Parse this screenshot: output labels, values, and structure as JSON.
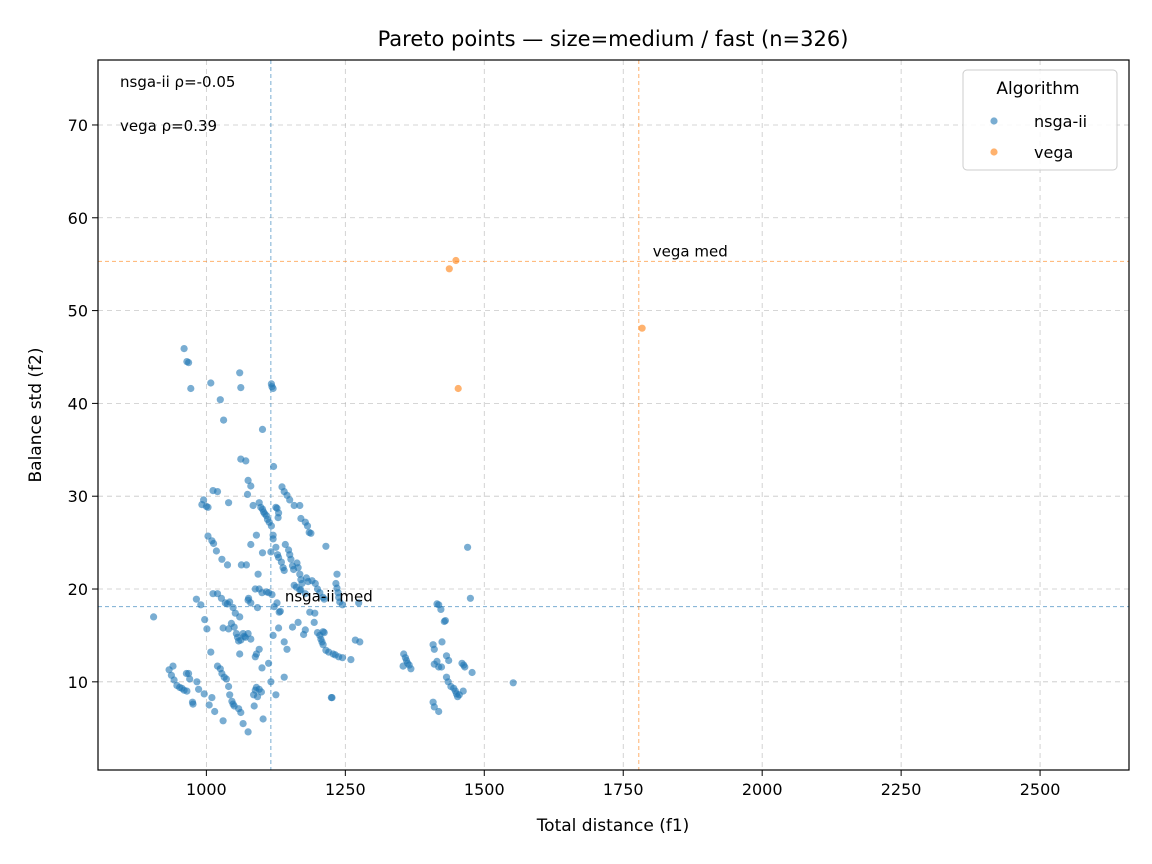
{
  "chart_data": {
    "type": "scatter",
    "title": "Pareto points — size=medium / fast (n=326)",
    "xlabel": "Total distance (f1)",
    "ylabel": "Balance std (f2)",
    "xlim": [
      805,
      2660
    ],
    "ylim": [
      0.5,
      77
    ],
    "xticks": [
      1000,
      1250,
      1500,
      1750,
      2000,
      2250,
      2500
    ],
    "yticks": [
      10,
      20,
      30,
      40,
      50,
      60,
      70
    ],
    "grid": true,
    "legend": {
      "title": "Algorithm",
      "position": "top-right"
    },
    "annotations": {
      "stat_lines": [
        "nsga-ii ρ=-0.05",
        "vega ρ=0.39"
      ],
      "median_labels": {
        "nsga-ii": "nsga-ii med",
        "vega": "vega med"
      }
    },
    "series": [
      {
        "name": "nsga-ii",
        "color": "#1f77b4",
        "median": {
          "x": 1116,
          "y": 18.1
        },
        "points": [
          [
            960,
            45.9
          ],
          [
            965,
            44.5
          ],
          [
            968,
            44.4
          ],
          [
            972,
            41.6
          ],
          [
            1008,
            42.2
          ],
          [
            1025,
            40.4
          ],
          [
            1031,
            38.2
          ],
          [
            1060,
            43.3
          ],
          [
            1062,
            41.7
          ],
          [
            1117,
            42.1
          ],
          [
            1118,
            41.8
          ],
          [
            1120,
            41.6
          ],
          [
            1101,
            37.2
          ],
          [
            1062,
            34.0
          ],
          [
            1071,
            33.8
          ],
          [
            1121,
            33.2
          ],
          [
            995,
            29.6
          ],
          [
            992,
            29.1
          ],
          [
            1000,
            28.9
          ],
          [
            1003,
            28.8
          ],
          [
            1012,
            30.6
          ],
          [
            1020,
            30.5
          ],
          [
            1040,
            29.3
          ],
          [
            1074,
            30.2
          ],
          [
            1075,
            31.7
          ],
          [
            1080,
            31.1
          ],
          [
            1084,
            29.0
          ],
          [
            1095,
            29.3
          ],
          [
            1098,
            28.8
          ],
          [
            1101,
            28.6
          ],
          [
            1103,
            28.3
          ],
          [
            1105,
            28.1
          ],
          [
            1108,
            27.9
          ],
          [
            1110,
            27.5
          ],
          [
            1113,
            27.2
          ],
          [
            1117,
            26.8
          ],
          [
            1120,
            25.8
          ],
          [
            1120,
            25.4
          ],
          [
            1125,
            28.8
          ],
          [
            1127,
            28.7
          ],
          [
            1130,
            28.2
          ],
          [
            1129,
            27.7
          ],
          [
            1136,
            31.0
          ],
          [
            1140,
            30.5
          ],
          [
            1145,
            30.1
          ],
          [
            1150,
            29.6
          ],
          [
            1158,
            29.0
          ],
          [
            1168,
            29.0
          ],
          [
            1170,
            27.6
          ],
          [
            1178,
            27.2
          ],
          [
            1182,
            26.8
          ],
          [
            1185,
            26.1
          ],
          [
            1188,
            26.0
          ],
          [
            1003,
            25.7
          ],
          [
            1010,
            25.2
          ],
          [
            1013,
            24.9
          ],
          [
            1018,
            24.1
          ],
          [
            1028,
            23.2
          ],
          [
            1038,
            22.6
          ],
          [
            1063,
            22.6
          ],
          [
            1072,
            22.6
          ],
          [
            1080,
            24.8
          ],
          [
            1093,
            21.6
          ],
          [
            1101,
            23.9
          ],
          [
            1116,
            24.0
          ],
          [
            1125,
            24.5
          ],
          [
            1128,
            23.7
          ],
          [
            1130,
            23.4
          ],
          [
            1135,
            22.9
          ],
          [
            1138,
            22.3
          ],
          [
            1140,
            22.0
          ],
          [
            1142,
            24.8
          ],
          [
            1148,
            24.2
          ],
          [
            1150,
            23.7
          ],
          [
            1152,
            23.2
          ],
          [
            1155,
            22.5
          ],
          [
            1157,
            22.1
          ],
          [
            1163,
            22.8
          ],
          [
            1165,
            22.3
          ],
          [
            1168,
            21.6
          ],
          [
            1170,
            21.0
          ],
          [
            1172,
            20.6
          ],
          [
            1180,
            21.2
          ],
          [
            1183,
            20.8
          ],
          [
            1190,
            20.9
          ],
          [
            1196,
            20.6
          ],
          [
            1200,
            20.0
          ],
          [
            1204,
            19.6
          ],
          [
            1210,
            19.1
          ],
          [
            1215,
            24.6
          ],
          [
            1235,
            21.6
          ],
          [
            1233,
            20.6
          ],
          [
            1235,
            20.1
          ],
          [
            1237,
            19.6
          ],
          [
            1238,
            19.1
          ],
          [
            1240,
            18.6
          ],
          [
            1245,
            18.3
          ],
          [
            1212,
            18.9
          ],
          [
            1170,
            19.9
          ],
          [
            1178,
            19.5
          ],
          [
            1158,
            20.4
          ],
          [
            1162,
            20.2
          ],
          [
            1168,
            19.9
          ],
          [
            1186,
            17.5
          ],
          [
            1195,
            17.4
          ],
          [
            1194,
            16.4
          ],
          [
            1165,
            16.4
          ],
          [
            1155,
            15.9
          ],
          [
            1175,
            15.1
          ],
          [
            1178,
            15.6
          ],
          [
            1200,
            15.3
          ],
          [
            1204,
            15.0
          ],
          [
            1206,
            14.6
          ],
          [
            1208,
            14.3
          ],
          [
            1210,
            14.0
          ],
          [
            1212,
            15.3
          ],
          [
            1210,
            15.4
          ],
          [
            1215,
            13.4
          ],
          [
            1220,
            13.2
          ],
          [
            1228,
            13.0
          ],
          [
            1232,
            12.9
          ],
          [
            1238,
            12.7
          ],
          [
            1245,
            12.6
          ],
          [
            1260,
            12.4
          ],
          [
            1268,
            14.5
          ],
          [
            1276,
            14.3
          ],
          [
            1274,
            18.5
          ],
          [
            1225,
            8.3
          ],
          [
            1226,
            8.3
          ],
          [
            1090,
            25.8
          ],
          [
            1088,
            20.0
          ],
          [
            1095,
            20.0
          ],
          [
            1100,
            19.6
          ],
          [
            1108,
            19.7
          ],
          [
            1112,
            19.6
          ],
          [
            1118,
            19.4
          ],
          [
            1122,
            18.1
          ],
          [
            1127,
            18.5
          ],
          [
            1131,
            17.5
          ],
          [
            1133,
            17.6
          ],
          [
            1120,
            15.0
          ],
          [
            1130,
            15.8
          ],
          [
            1140,
            14.3
          ],
          [
            1145,
            13.5
          ],
          [
            982,
            18.9
          ],
          [
            990,
            18.3
          ],
          [
            1012,
            19.5
          ],
          [
            1020,
            19.5
          ],
          [
            1027,
            19.0
          ],
          [
            1034,
            18.5
          ],
          [
            1038,
            18.4
          ],
          [
            1042,
            18.6
          ],
          [
            1048,
            18.0
          ],
          [
            1052,
            17.4
          ],
          [
            1060,
            17.0
          ],
          [
            1075,
            18.8
          ],
          [
            1076,
            19.0
          ],
          [
            1080,
            18.5
          ],
          [
            1092,
            18.0
          ],
          [
            997,
            16.7
          ],
          [
            1001,
            15.7
          ],
          [
            1008,
            13.2
          ],
          [
            1030,
            15.8
          ],
          [
            1040,
            15.7
          ],
          [
            1045,
            16.3
          ],
          [
            1050,
            15.9
          ],
          [
            1054,
            15.2
          ],
          [
            1056,
            14.8
          ],
          [
            1058,
            14.4
          ],
          [
            1060,
            13.0
          ],
          [
            1062,
            14.5
          ],
          [
            1066,
            15.2
          ],
          [
            1068,
            14.9
          ],
          [
            1070,
            14.8
          ],
          [
            1075,
            15.2
          ],
          [
            1080,
            14.6
          ],
          [
            1088,
            12.7
          ],
          [
            1090,
            13.0
          ],
          [
            1095,
            13.5
          ],
          [
            1100,
            11.5
          ],
          [
            1112,
            12.0
          ],
          [
            1116,
            10.0
          ],
          [
            1125,
            8.6
          ],
          [
            1140,
            10.5
          ],
          [
            940,
            11.7
          ],
          [
            933,
            11.3
          ],
          [
            937,
            10.7
          ],
          [
            942,
            10.2
          ],
          [
            947,
            9.6
          ],
          [
            952,
            9.4
          ],
          [
            956,
            9.3
          ],
          [
            960,
            9.1
          ],
          [
            965,
            9.0
          ],
          [
            964,
            10.9
          ],
          [
            968,
            10.9
          ],
          [
            970,
            10.3
          ],
          [
            975,
            7.8
          ],
          [
            976,
            7.6
          ],
          [
            983,
            10.0
          ],
          [
            986,
            9.2
          ],
          [
            996,
            8.7
          ],
          [
            1005,
            7.5
          ],
          [
            1010,
            8.3
          ],
          [
            1015,
            6.8
          ],
          [
            1020,
            11.7
          ],
          [
            1025,
            11.4
          ],
          [
            1028,
            10.9
          ],
          [
            1032,
            10.5
          ],
          [
            1036,
            10.3
          ],
          [
            1040,
            9.5
          ],
          [
            1042,
            8.6
          ],
          [
            1046,
            7.9
          ],
          [
            1048,
            7.6
          ],
          [
            1050,
            7.4
          ],
          [
            1058,
            7.1
          ],
          [
            1062,
            6.7
          ],
          [
            1066,
            5.5
          ],
          [
            1075,
            4.6
          ],
          [
            1030,
            5.8
          ],
          [
            1085,
            8.6
          ],
          [
            1088,
            9.1
          ],
          [
            1090,
            9.4
          ],
          [
            1095,
            9.2
          ],
          [
            1099,
            8.9
          ],
          [
            1102,
            6.0
          ],
          [
            1086,
            7.4
          ],
          [
            1092,
            8.4
          ],
          [
            905,
            17.0
          ],
          [
            1415,
            18.4
          ],
          [
            1418,
            18.3
          ],
          [
            1422,
            17.8
          ],
          [
            1428,
            16.5
          ],
          [
            1430,
            16.6
          ],
          [
            1424,
            14.3
          ],
          [
            1432,
            12.8
          ],
          [
            1436,
            12.3
          ],
          [
            1408,
            14.0
          ],
          [
            1410,
            13.5
          ],
          [
            1415,
            12.2
          ],
          [
            1418,
            11.6
          ],
          [
            1423,
            11.6
          ],
          [
            1410,
            11.9
          ],
          [
            1355,
            13.0
          ],
          [
            1358,
            12.6
          ],
          [
            1360,
            12.3
          ],
          [
            1362,
            12.0
          ],
          [
            1365,
            11.8
          ],
          [
            1368,
            11.4
          ],
          [
            1354,
            11.7
          ],
          [
            1460,
            12.0
          ],
          [
            1465,
            11.6
          ],
          [
            1463,
            11.8
          ],
          [
            1478,
            11.0
          ],
          [
            1470,
            24.5
          ],
          [
            1475,
            19.0
          ],
          [
            1432,
            10.5
          ],
          [
            1435,
            10.0
          ],
          [
            1440,
            9.5
          ],
          [
            1445,
            9.3
          ],
          [
            1448,
            9.0
          ],
          [
            1450,
            8.7
          ],
          [
            1452,
            8.4
          ],
          [
            1455,
            8.6
          ],
          [
            1462,
            9.0
          ],
          [
            1408,
            7.8
          ],
          [
            1410,
            7.3
          ],
          [
            1418,
            6.8
          ],
          [
            1552,
            9.9
          ]
        ]
      },
      {
        "name": "vega",
        "color": "#ff7f0e",
        "median": {
          "x": 1778,
          "y": 55.3
        },
        "points": [
          [
            1437,
            54.5
          ],
          [
            1449,
            55.4
          ],
          [
            1784,
            48.1
          ],
          [
            1453,
            41.6
          ]
        ]
      }
    ]
  }
}
